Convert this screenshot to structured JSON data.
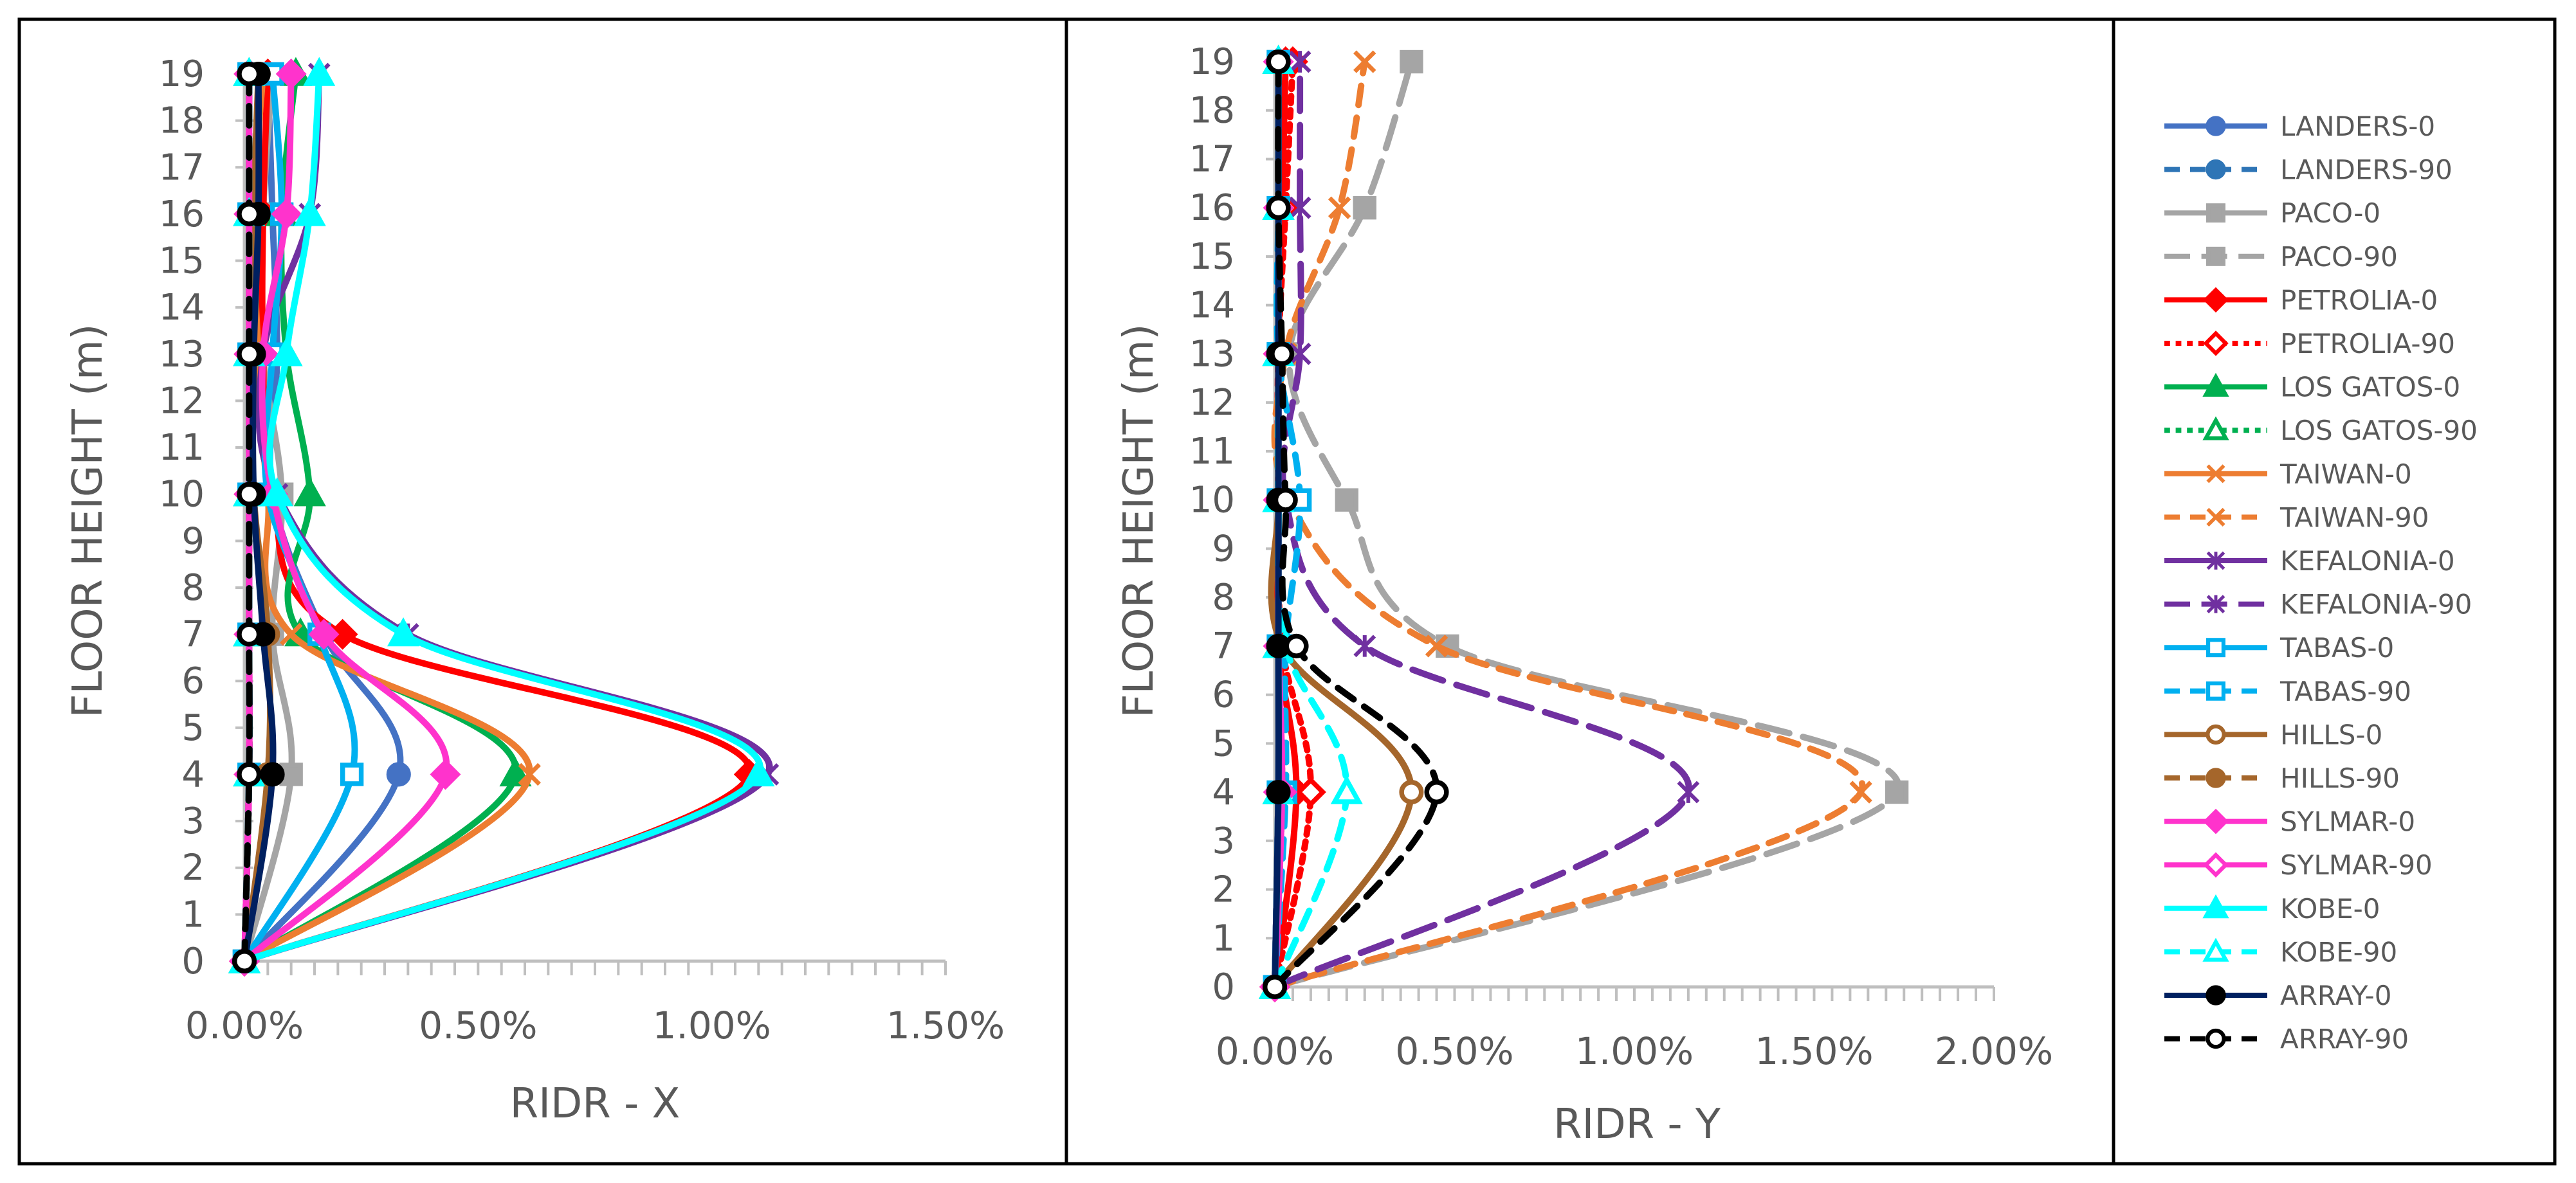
{
  "legend": [
    {
      "name": "LANDERS-0",
      "color": "#4472C4",
      "dash": "solid",
      "marker": "circle",
      "filled": true
    },
    {
      "name": "LANDERS-90",
      "color": "#2E75B6",
      "dash": "dash",
      "marker": "circle",
      "filled": true
    },
    {
      "name": "PACO-0",
      "color": "#A5A5A5",
      "dash": "solid",
      "marker": "square",
      "filled": true
    },
    {
      "name": "PACO-90",
      "color": "#A5A5A5",
      "dash": "longdash",
      "marker": "square",
      "filled": true
    },
    {
      "name": "PETROLIA-0",
      "color": "#FF0000",
      "dash": "solid",
      "marker": "diamond",
      "filled": true
    },
    {
      "name": "PETROLIA-90",
      "color": "#FF0000",
      "dash": "dot",
      "marker": "diamond",
      "filled": false
    },
    {
      "name": "LOS GATOS-0",
      "color": "#00B050",
      "dash": "solid",
      "marker": "triangle",
      "filled": true
    },
    {
      "name": "LOS GATOS-90",
      "color": "#00B050",
      "dash": "dot",
      "marker": "triangle",
      "filled": false
    },
    {
      "name": "TAIWAN-0",
      "color": "#ED7D31",
      "dash": "solid",
      "marker": "x",
      "filled": true
    },
    {
      "name": "TAIWAN-90",
      "color": "#ED7D31",
      "dash": "dash",
      "marker": "x",
      "filled": true
    },
    {
      "name": "KEFALONIA-0",
      "color": "#7030A0",
      "dash": "solid",
      "marker": "star",
      "filled": true
    },
    {
      "name": "KEFALONIA-90",
      "color": "#7030A0",
      "dash": "longdash",
      "marker": "star",
      "filled": true
    },
    {
      "name": "TABAS-0",
      "color": "#00B0F0",
      "dash": "solid",
      "marker": "square",
      "filled": false
    },
    {
      "name": "TABAS-90",
      "color": "#00B0F0",
      "dash": "dash",
      "marker": "square",
      "filled": false
    },
    {
      "name": "HILLS-0",
      "color": "#A5662B",
      "dash": "solid",
      "marker": "circle",
      "filled": false
    },
    {
      "name": "HILLS-90",
      "color": "#A5662B",
      "dash": "dash",
      "marker": "circle",
      "filled": true
    },
    {
      "name": "SYLMAR-0",
      "color": "#FF33CC",
      "dash": "solid",
      "marker": "diamond",
      "filled": true
    },
    {
      "name": "SYLMAR-90",
      "color": "#FF33CC",
      "dash": "solid",
      "marker": "diamond",
      "filled": false
    },
    {
      "name": "KOBE-0",
      "color": "#00FFFF",
      "dash": "solid",
      "marker": "triangle",
      "filled": true
    },
    {
      "name": "KOBE-90",
      "color": "#00FFFF",
      "dash": "dash",
      "marker": "triangle",
      "filled": false
    },
    {
      "name": "ARRAY-0",
      "color": "#002060",
      "dash": "solid",
      "marker": "circle",
      "filled": true,
      "markerColor": "#000000"
    },
    {
      "name": "ARRAY-90",
      "color": "#000000",
      "dash": "dash",
      "marker": "circle",
      "filled": false
    }
  ],
  "chart_data": [
    {
      "type": "line",
      "xlabel": "RIDR - X",
      "ylabel": "FLOOR HEIGHT (m)",
      "xlim": [
        0,
        0.015
      ],
      "ylim": [
        0,
        19
      ],
      "x_ticks": [
        "0.00%",
        "0.50%",
        "1.00%",
        "1.50%"
      ],
      "y_ticks": [
        "0",
        "1",
        "2",
        "3",
        "4",
        "5",
        "6",
        "7",
        "8",
        "9",
        "10",
        "11",
        "12",
        "13",
        "14",
        "15",
        "16",
        "17",
        "18",
        "19"
      ],
      "marker_y": [
        0,
        4,
        7,
        10,
        13,
        16,
        19
      ],
      "series": [
        {
          "name": "LANDERS-0",
          "x": [
            0,
            0.0033,
            0.0017,
            0.0006,
            0.0007,
            0.0006,
            0.0005
          ]
        },
        {
          "name": "LANDERS-90",
          "x": [
            0,
            0.0001,
            0.0001,
            0.0001,
            0.0001,
            0.0001,
            0.0001
          ]
        },
        {
          "name": "PACO-0",
          "x": [
            0,
            0.001,
            0.0006,
            0.0008,
            0.0004,
            0.0004,
            0.0006
          ]
        },
        {
          "name": "PACO-90",
          "x": [
            0,
            0.0001,
            0.0001,
            0.0001,
            0.0001,
            0.0001,
            0.0001
          ]
        },
        {
          "name": "PETROLIA-0",
          "x": [
            0,
            0.0108,
            0.0021,
            0.0006,
            0.0004,
            0.0004,
            0.0005
          ]
        },
        {
          "name": "PETROLIA-90",
          "x": [
            0,
            0.0001,
            0.0001,
            0.0001,
            0.0001,
            0.0001,
            0.0001
          ]
        },
        {
          "name": "LOS GATOS-0",
          "x": [
            0,
            0.0058,
            0.0012,
            0.0014,
            0.0009,
            0.0008,
            0.0011
          ]
        },
        {
          "name": "LOS GATOS-90",
          "x": [
            0,
            0.0001,
            0.0001,
            0.0001,
            0.0001,
            0.0001,
            0.0001
          ]
        },
        {
          "name": "TAIWAN-0",
          "x": [
            0,
            0.0061,
            0.001,
            0.0005,
            0.0003,
            0.0002,
            0.0004
          ]
        },
        {
          "name": "TAIWAN-90",
          "x": [
            0,
            0.0001,
            0.0001,
            0.0001,
            0.0001,
            0.0001,
            0.0001
          ]
        },
        {
          "name": "KEFALONIA-0",
          "x": [
            0,
            0.0112,
            0.0035,
            0.0007,
            0.0004,
            0.0014,
            0.0016
          ]
        },
        {
          "name": "KEFALONIA-90",
          "x": [
            0,
            0.0001,
            0.0001,
            0.0001,
            0.0001,
            0.0001,
            0.0001
          ]
        },
        {
          "name": "TABAS-0",
          "x": [
            0,
            0.0023,
            0.0016,
            0.0005,
            0.0006,
            0.0008,
            0.0006
          ]
        },
        {
          "name": "TABAS-90",
          "x": [
            0,
            0.0001,
            0.0001,
            0.0001,
            0.0001,
            0.0001,
            0.0001
          ]
        },
        {
          "name": "HILLS-0",
          "x": [
            0,
            0.0005,
            0.0005,
            0.0002,
            0.0002,
            0.0002,
            0.0003
          ]
        },
        {
          "name": "HILLS-90",
          "x": [
            0,
            0.0001,
            0.0001,
            0.0001,
            0.0001,
            0.0001,
            0.0001
          ]
        },
        {
          "name": "SYLMAR-0",
          "x": [
            0,
            0.0043,
            0.0017,
            0.0006,
            0.0004,
            0.0009,
            0.001
          ]
        },
        {
          "name": "SYLMAR-90",
          "x": [
            0,
            0.0001,
            0.0001,
            0.0001,
            0.0001,
            0.0001,
            0.0001
          ]
        },
        {
          "name": "KOBE-0",
          "x": [
            0,
            0.011,
            0.0034,
            0.0007,
            0.0009,
            0.0014,
            0.0016
          ]
        },
        {
          "name": "KOBE-90",
          "x": [
            0,
            0.0001,
            0.0001,
            0.0001,
            0.0001,
            0.0001,
            0.0001
          ]
        },
        {
          "name": "ARRAY-0",
          "x": [
            0,
            0.0006,
            0.0004,
            0.0002,
            0.0002,
            0.0003,
            0.0003
          ]
        },
        {
          "name": "ARRAY-90",
          "x": [
            0,
            0.0001,
            0.0001,
            0.0001,
            0.0001,
            0.0001,
            0.0001
          ]
        }
      ]
    },
    {
      "type": "line",
      "xlabel": "RIDR - Y",
      "ylabel": "FLOOR HEIGHT (m)",
      "xlim": [
        0,
        0.02
      ],
      "ylim": [
        0,
        19
      ],
      "x_ticks": [
        "0.00%",
        "0.50%",
        "1.00%",
        "1.50%",
        "2.00%"
      ],
      "y_ticks": [
        "0",
        "1",
        "2",
        "3",
        "4",
        "5",
        "6",
        "7",
        "8",
        "9",
        "10",
        "11",
        "12",
        "13",
        "14",
        "15",
        "16",
        "17",
        "18",
        "19"
      ],
      "marker_y": [
        0,
        4,
        7,
        10,
        13,
        16,
        19
      ],
      "series": [
        {
          "name": "LANDERS-0",
          "x": [
            0,
            0.0001,
            0.0001,
            0.0001,
            0.0001,
            0.0001,
            0.0001
          ]
        },
        {
          "name": "LANDERS-90",
          "x": [
            0,
            0.0002,
            0.0001,
            0.0001,
            0.0001,
            0.0001,
            0.0001
          ]
        },
        {
          "name": "PACO-0",
          "x": [
            0,
            0.0001,
            0.0001,
            0.0001,
            0.0001,
            0.0001,
            0.0001
          ]
        },
        {
          "name": "PACO-90",
          "x": [
            0,
            0.0173,
            0.0048,
            0.002,
            0.0004,
            0.0025,
            0.0038
          ]
        },
        {
          "name": "PETROLIA-0",
          "x": [
            0,
            0.0006,
            0.0001,
            0.0001,
            0.0001,
            0.0002,
            0.0003
          ]
        },
        {
          "name": "PETROLIA-90",
          "x": [
            0,
            0.001,
            0.0002,
            0.0001,
            0.0001,
            0.0003,
            0.0005
          ]
        },
        {
          "name": "LOS GATOS-0",
          "x": [
            0,
            0.0001,
            0.0001,
            0.0001,
            0.0001,
            0.0001,
            0.0001
          ]
        },
        {
          "name": "LOS GATOS-90",
          "x": [
            0,
            0.0002,
            0.0001,
            0.0001,
            0.0001,
            0.0001,
            0.0001
          ]
        },
        {
          "name": "TAIWAN-0",
          "x": [
            0,
            0.0001,
            0.0001,
            0.0001,
            0.0001,
            0.0001,
            0.0001
          ]
        },
        {
          "name": "TAIWAN-90",
          "x": [
            0,
            0.0163,
            0.0045,
            0.0004,
            0.0003,
            0.0018,
            0.0025
          ]
        },
        {
          "name": "KEFALONIA-0",
          "x": [
            0,
            0.0001,
            0.0001,
            0.0001,
            0.0001,
            0.0001,
            0.0001
          ]
        },
        {
          "name": "KEFALONIA-90",
          "x": [
            0,
            0.0115,
            0.0025,
            0.0003,
            0.0007,
            0.0007,
            0.0007
          ]
        },
        {
          "name": "TABAS-0",
          "x": [
            0,
            0.0001,
            0.0001,
            0.0001,
            0.0001,
            0.0001,
            0.0001
          ]
        },
        {
          "name": "TABAS-90",
          "x": [
            0,
            0.0003,
            0.0003,
            0.0007,
            0.0001,
            0.0001,
            0.0001
          ]
        },
        {
          "name": "HILLS-0",
          "x": [
            0,
            0.0038,
            0.0002,
            0.0001,
            0.0001,
            0.0001,
            0.0001
          ]
        },
        {
          "name": "HILLS-90",
          "x": [
            0,
            0.0001,
            0.0001,
            0.0001,
            0.0001,
            0.0001,
            0.0001
          ]
        },
        {
          "name": "SYLMAR-0",
          "x": [
            0,
            0.0001,
            0.0001,
            0.0001,
            0.0001,
            0.0001,
            0.0001
          ]
        },
        {
          "name": "SYLMAR-90",
          "x": [
            0,
            0.0002,
            0.0001,
            0.0001,
            0.0001,
            0.0001,
            0.0001
          ]
        },
        {
          "name": "KOBE-0",
          "x": [
            0,
            0.0001,
            0.0001,
            0.0001,
            0.0001,
            0.0001,
            0.0001
          ]
        },
        {
          "name": "KOBE-90",
          "x": [
            0,
            0.002,
            0.0003,
            0.0001,
            0.0001,
            0.0001,
            0.0001
          ]
        },
        {
          "name": "ARRAY-0",
          "x": [
            0,
            0.0001,
            0.0001,
            0.0001,
            0.0001,
            0.0001,
            0.0001
          ]
        },
        {
          "name": "ARRAY-90",
          "x": [
            0,
            0.0045,
            0.0006,
            0.0003,
            0.0002,
            0.0001,
            0.0001
          ]
        }
      ]
    }
  ]
}
